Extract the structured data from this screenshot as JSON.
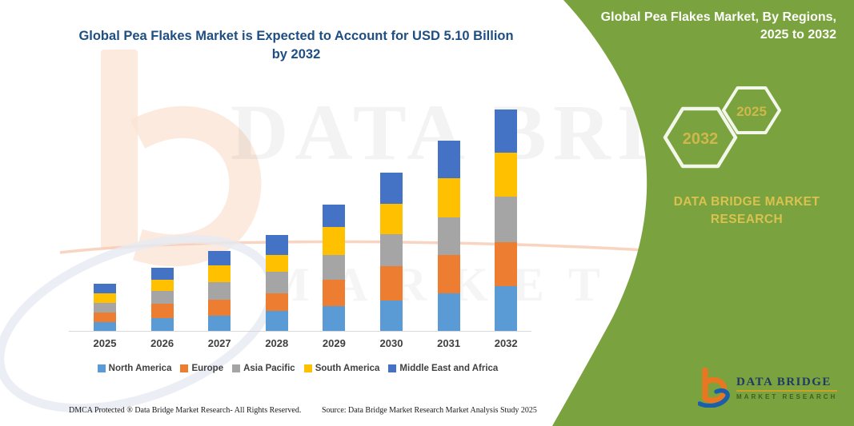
{
  "header": {
    "title": "Global Pea Flakes Market is Expected to Account for USD 5.10 Billion by 2032"
  },
  "side_panel": {
    "title": "Global Pea Flakes Market, By Regions, 2025 to 2032",
    "hexagons": [
      "2032",
      "2025"
    ],
    "brand": "DATA BRIDGE MARKET RESEARCH",
    "panel_color": "#7AA23E",
    "accent_gold": "#D9C24F"
  },
  "watermark": {
    "line1": "DATA BRIDGE",
    "line2": "MARKET RESEARCH"
  },
  "logo": {
    "name": "DATA BRIDGE",
    "subtitle": "MARKET RESEARCH"
  },
  "footer": {
    "left": "DMCA Protected ® Data Bridge Market Research-  All Rights Reserved.",
    "right": "Source: Data Bridge Market Research  Market Analysis Study 2025"
  },
  "chart_data": {
    "type": "bar",
    "stacked": true,
    "title": "Global Pea Flakes Market is Expected to Account for USD 5.10 Billion by 2032",
    "unit": "USD Billion",
    "annotation": "USD 5.10 Billion by 2032",
    "categories": [
      "2025",
      "2026",
      "2027",
      "2028",
      "2029",
      "2030",
      "2031",
      "2032"
    ],
    "series": [
      {
        "name": "North America",
        "color": "#5B9BD5",
        "values": [
          0.23,
          0.32,
          0.37,
          0.47,
          0.59,
          0.72,
          0.88,
          1.04
        ]
      },
      {
        "name": "Europe",
        "color": "#ED7D31",
        "values": [
          0.22,
          0.32,
          0.37,
          0.41,
          0.61,
          0.79,
          0.89,
          1.02
        ]
      },
      {
        "name": "Asia Pacific",
        "color": "#A5A5A5",
        "values": [
          0.22,
          0.29,
          0.4,
          0.5,
          0.56,
          0.73,
          0.86,
          1.04
        ]
      },
      {
        "name": "South America",
        "color": "#FFC000",
        "values": [
          0.22,
          0.27,
          0.38,
          0.39,
          0.65,
          0.69,
          0.89,
          1.01
        ]
      },
      {
        "name": "Middle East and Africa",
        "color": "#4472C4",
        "values": [
          0.21,
          0.27,
          0.33,
          0.45,
          0.51,
          0.72,
          0.87,
          0.99
        ]
      }
    ],
    "totals": [
      1.1,
      1.47,
      1.85,
      2.22,
      2.92,
      3.65,
      4.39,
      5.1
    ],
    "xlabel": "",
    "ylabel": "",
    "ylim": [
      0,
      5.5
    ],
    "grid": false,
    "legend_position": "bottom"
  }
}
